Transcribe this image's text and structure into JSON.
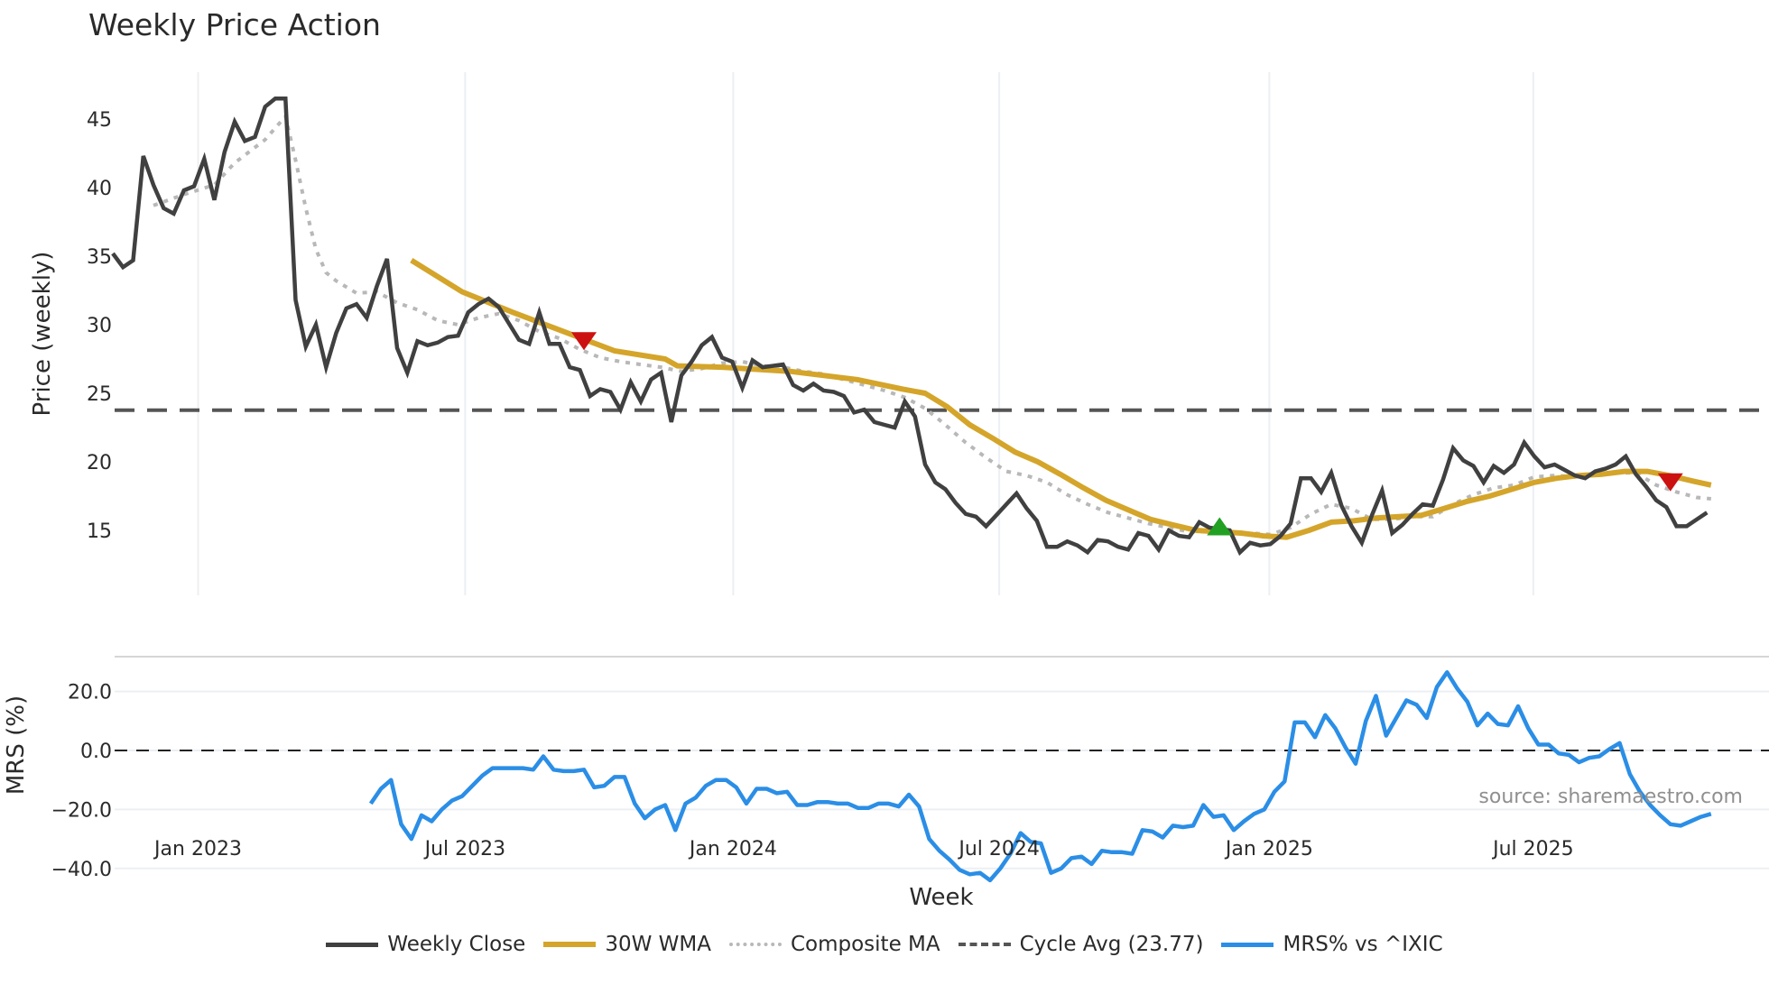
{
  "title": "Weekly Price Action",
  "source_note": "source: sharemaestro.com",
  "legend": [
    {
      "key": "close",
      "label": "Weekly Close"
    },
    {
      "key": "wma",
      "label": "30W WMA"
    },
    {
      "key": "comp",
      "label": "Composite MA"
    },
    {
      "key": "cycle",
      "label": "Cycle Avg (23.77)"
    },
    {
      "key": "mrs",
      "label": "MRS% vs ^IXIC"
    }
  ],
  "chart_data": [
    {
      "type": "line",
      "title": "Weekly Price Action",
      "xlabel": "Week",
      "ylabel": "Price (weekly)",
      "x_unit": "week index from first data point (~Nov 2022)",
      "xticks": [
        {
          "label": "Jan 2023",
          "week": 8.4
        },
        {
          "label": "Jul 2023",
          "week": 34.7
        },
        {
          "label": "Jan 2024",
          "week": 61.1
        },
        {
          "label": "Jul 2024",
          "week": 87.3
        },
        {
          "label": "Jan 2025",
          "week": 113.9
        },
        {
          "label": "Jul 2025",
          "week": 139.9
        }
      ],
      "yticks": [
        15,
        20,
        25,
        30,
        35,
        40,
        45
      ],
      "ylim": [
        11.5,
        48
      ],
      "grid": {
        "x": true,
        "y": false
      },
      "colors": {
        "close": "#404040",
        "wma": "#d4a52a",
        "comp": "#b8b8b8",
        "cycle": "#555555",
        "sell": "#cc1111",
        "buy": "#22a022"
      },
      "cycle_avg": 23.77,
      "series": [
        {
          "name": "Weekly Close",
          "key": "close",
          "start_week": 0,
          "values": [
            35.2,
            34.2,
            34.7,
            42.3,
            40.2,
            38.5,
            38.1,
            39.8,
            40.1,
            42.1,
            39.1,
            42.6,
            44.8,
            43.4,
            43.7,
            45.9,
            46.5,
            46.5,
            31.8,
            28.4,
            30.0,
            26.9,
            29.4,
            31.2,
            31.5,
            30.5,
            32.8,
            34.8,
            28.3,
            26.5,
            28.8,
            28.5,
            28.7,
            29.1,
            29.2,
            30.9,
            31.5,
            31.9,
            31.3,
            30.1,
            28.9,
            28.6,
            30.9,
            28.6,
            28.6,
            26.9,
            26.7,
            24.8,
            25.3,
            25.1,
            23.8,
            25.8,
            24.4,
            26.0,
            26.5,
            22.9,
            26.3,
            27.3,
            28.5,
            29.1,
            27.6,
            27.3,
            25.4,
            27.4,
            26.9,
            27.0,
            27.1,
            25.6,
            25.2,
            25.7,
            25.2,
            25.1,
            24.8,
            23.6,
            23.8,
            22.9,
            22.7,
            22.5,
            24.4,
            23.3,
            19.8,
            18.5,
            18.0,
            17.0,
            16.2,
            16.0,
            15.3,
            16.1,
            16.9,
            17.7,
            16.6,
            15.7,
            13.8,
            13.8,
            14.2,
            13.9,
            13.4,
            14.3,
            14.2,
            13.8,
            13.6,
            14.8,
            14.6,
            13.6,
            15.0,
            14.6,
            14.5,
            15.6,
            15.2,
            15.1,
            15.0,
            13.4,
            14.1,
            13.9,
            14.0,
            14.6,
            15.5,
            18.8,
            18.8,
            17.8,
            19.2,
            16.8,
            15.3,
            14.1,
            16.1,
            17.9,
            14.8,
            15.4,
            16.2,
            16.9,
            16.8,
            18.7,
            21.0,
            20.1,
            19.7,
            18.5,
            19.7,
            19.2,
            19.8,
            21.4,
            20.4,
            19.6,
            19.8,
            19.4,
            19.0,
            18.8,
            19.3,
            19.5,
            19.8,
            20.4,
            19.1,
            18.2,
            17.2,
            16.7,
            15.3,
            15.3,
            15.8,
            16.3
          ]
        },
        {
          "name": "30W WMA",
          "key": "wma",
          "points": [
            [
              29.4,
              34.7
            ],
            [
              34.4,
              32.4
            ],
            [
              39.4,
              30.9
            ],
            [
              44.4,
              29.5
            ],
            [
              49.4,
              28.1
            ],
            [
              54.4,
              27.5
            ],
            [
              55.6,
              27.0
            ],
            [
              60.0,
              26.9
            ],
            [
              66.7,
              26.6
            ],
            [
              73.3,
              26.0
            ],
            [
              77.8,
              25.3
            ],
            [
              80.0,
              25.0
            ],
            [
              82.2,
              24.0
            ],
            [
              84.4,
              22.7
            ],
            [
              86.7,
              21.7
            ],
            [
              88.9,
              20.7
            ],
            [
              91.1,
              20.0
            ],
            [
              93.3,
              19.1
            ],
            [
              95.6,
              18.1
            ],
            [
              97.8,
              17.2
            ],
            [
              100.0,
              16.5
            ],
            [
              102.2,
              15.8
            ],
            [
              104.4,
              15.4
            ],
            [
              106.7,
              15.0
            ],
            [
              108.9,
              14.9
            ],
            [
              111.1,
              14.8
            ],
            [
              113.3,
              14.6
            ],
            [
              115.6,
              14.5
            ],
            [
              117.8,
              15.0
            ],
            [
              120.0,
              15.6
            ],
            [
              122.2,
              15.7
            ],
            [
              124.4,
              15.9
            ],
            [
              126.7,
              16.0
            ],
            [
              128.9,
              16.1
            ],
            [
              131.1,
              16.6
            ],
            [
              133.3,
              17.1
            ],
            [
              135.6,
              17.5
            ],
            [
              137.8,
              18.0
            ],
            [
              140.0,
              18.5
            ],
            [
              142.2,
              18.8
            ],
            [
              144.4,
              19.0
            ],
            [
              146.7,
              19.1
            ],
            [
              148.9,
              19.3
            ],
            [
              151.1,
              19.3
            ],
            [
              153.3,
              19.0
            ],
            [
              155.6,
              18.6
            ],
            [
              157.4,
              18.3
            ]
          ]
        },
        {
          "name": "Composite MA",
          "key": "comp",
          "points": [
            [
              4.0,
              38.7
            ],
            [
              7.0,
              39.5
            ],
            [
              10.0,
              40.2
            ],
            [
              12.0,
              41.8
            ],
            [
              15.0,
              43.5
            ],
            [
              17.0,
              45.2
            ],
            [
              18.0,
              42.0
            ],
            [
              19.0,
              38.5
            ],
            [
              20.0,
              35.5
            ],
            [
              21.0,
              33.8
            ],
            [
              22.0,
              33.2
            ],
            [
              24.0,
              32.3
            ],
            [
              26.0,
              32.4
            ],
            [
              28.0,
              31.6
            ],
            [
              30.0,
              31.1
            ],
            [
              32.0,
              30.3
            ],
            [
              34.0,
              30.0
            ],
            [
              36.0,
              30.5
            ],
            [
              38.0,
              30.8
            ],
            [
              40.0,
              30.3
            ],
            [
              42.0,
              29.5
            ],
            [
              44.0,
              29.0
            ],
            [
              46.0,
              28.2
            ],
            [
              48.0,
              27.6
            ],
            [
              50.0,
              27.3
            ],
            [
              52.0,
              27.1
            ],
            [
              54.0,
              26.9
            ],
            [
              56.0,
              26.6
            ],
            [
              58.0,
              26.8
            ],
            [
              60.0,
              27.2
            ],
            [
              62.0,
              27.3
            ],
            [
              64.0,
              27.0
            ],
            [
              66.0,
              26.9
            ],
            [
              68.0,
              26.6
            ],
            [
              70.0,
              26.4
            ],
            [
              72.0,
              26.0
            ],
            [
              74.0,
              25.6
            ],
            [
              76.0,
              25.2
            ],
            [
              78.0,
              24.7
            ],
            [
              80.0,
              23.9
            ],
            [
              82.0,
              22.7
            ],
            [
              84.0,
              21.4
            ],
            [
              86.0,
              20.3
            ],
            [
              88.0,
              19.3
            ],
            [
              90.0,
              19.0
            ],
            [
              92.0,
              18.5
            ],
            [
              94.0,
              17.6
            ],
            [
              96.0,
              16.9
            ],
            [
              98.0,
              16.3
            ],
            [
              100.0,
              15.9
            ],
            [
              102.0,
              15.5
            ],
            [
              104.0,
              15.2
            ],
            [
              106.0,
              14.9
            ],
            [
              108.0,
              14.9
            ],
            [
              110.0,
              14.8
            ],
            [
              112.0,
              14.8
            ],
            [
              114.0,
              14.7
            ],
            [
              116.0,
              15.2
            ],
            [
              118.0,
              16.2
            ],
            [
              120.0,
              16.9
            ],
            [
              122.0,
              16.6
            ],
            [
              124.0,
              15.8
            ],
            [
              126.0,
              15.8
            ],
            [
              128.0,
              16.0
            ],
            [
              130.0,
              16.0
            ],
            [
              132.0,
              16.9
            ],
            [
              134.0,
              17.6
            ],
            [
              136.0,
              18.1
            ],
            [
              138.0,
              18.3
            ],
            [
              140.0,
              18.9
            ],
            [
              142.0,
              19.0
            ],
            [
              144.0,
              18.9
            ],
            [
              146.0,
              19.1
            ],
            [
              148.0,
              19.2
            ],
            [
              150.0,
              19.2
            ],
            [
              152.0,
              18.3
            ],
            [
              154.0,
              17.8
            ],
            [
              156.0,
              17.4
            ],
            [
              157.4,
              17.3
            ]
          ]
        }
      ],
      "markers": [
        {
          "type": "sell",
          "week": 46.4,
          "value": 28.8
        },
        {
          "type": "buy",
          "week": 109.0,
          "value": 15.3
        },
        {
          "type": "sell",
          "week": 153.4,
          "value": 18.5
        }
      ]
    },
    {
      "type": "line",
      "title": "",
      "xlabel": "Week",
      "ylabel": "MRS (%)",
      "yticks": [
        -40.0,
        -20.0,
        0.0,
        20.0
      ],
      "ytick_labels": [
        "−40.0",
        "−20.0",
        "0.0",
        "20.0"
      ],
      "ylim": [
        -48,
        31
      ],
      "zero_line": 0.0,
      "series": [
        {
          "name": "MRS% vs ^IXIC",
          "key": "mrs",
          "color": "#2b8ee6",
          "start_week": 25.4,
          "values": [
            -18,
            -13,
            -10,
            -25,
            -30,
            -22,
            -24,
            -20,
            -17,
            -15.5,
            -12,
            -8.5,
            -6,
            -6,
            -6,
            -6,
            -6.5,
            -2,
            -6.5,
            -7,
            -7,
            -6.5,
            -12.5,
            -12,
            -9,
            -9,
            -18,
            -23,
            -20,
            -18.5,
            -27,
            -18,
            -16,
            -12,
            -10,
            -10,
            -12.5,
            -18,
            -13,
            -13,
            -14.5,
            -14,
            -18.5,
            -18.5,
            -17.5,
            -17.5,
            -18,
            -18,
            -19.5,
            -19.5,
            -18,
            -18,
            -19,
            -15,
            -19,
            -30,
            -34,
            -37,
            -40.5,
            -42,
            -41.5,
            -44,
            -40,
            -35,
            -28,
            -31,
            -31.5,
            -41.5,
            -40,
            -36.5,
            -36,
            -38.5,
            -34,
            -34.5,
            -34.5,
            -35,
            -27,
            -27.5,
            -29.5,
            -25.5,
            -26,
            -25.5,
            -18.5,
            -22.5,
            -22,
            -27,
            -24,
            -21.5,
            -20,
            -14,
            -10.5,
            9.5,
            9.5,
            4.5,
            12,
            7.5,
            1,
            -4.5,
            10,
            18.5,
            5,
            11,
            17,
            15.5,
            11,
            21.5,
            26.5,
            21,
            16.5,
            8.5,
            12.5,
            9,
            8.5,
            15,
            7.5,
            2,
            2,
            -1,
            -1.5,
            -4,
            -2.5,
            -2,
            0.5,
            2.5,
            -8,
            -14,
            -18.5,
            -22,
            -25,
            -25.5,
            -24,
            -22.5,
            -21.5
          ]
        }
      ]
    }
  ]
}
